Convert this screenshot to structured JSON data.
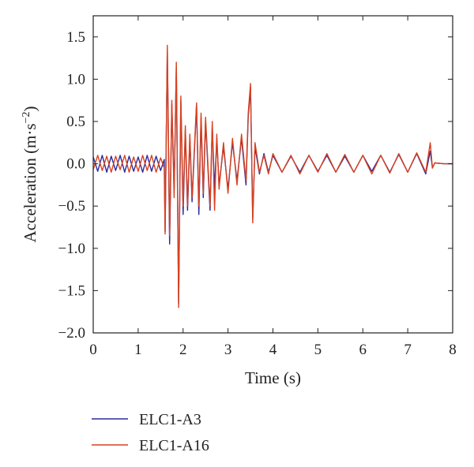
{
  "chart_data": {
    "type": "line",
    "title": "",
    "xlabel": "Time (s)",
    "ylabel": "Acceleration (m·s",
    "ylabel_sup": "−2",
    "ylabel_close": ")",
    "xlim": [
      0,
      8
    ],
    "ylim": [
      -2.0,
      1.75
    ],
    "xticks": [
      0,
      1,
      2,
      3,
      4,
      5,
      6,
      7,
      8
    ],
    "xtick_labels": [
      "0",
      "1",
      "2",
      "3",
      "4",
      "5",
      "6",
      "7",
      "8"
    ],
    "yticks": [
      1.5,
      1.0,
      0.5,
      0.0,
      -0.5,
      -1.0,
      -1.5,
      -2.0
    ],
    "ytick_labels": [
      "1.5",
      "1.0",
      "0.5",
      "0.0",
      "−0.5",
      "−1.0",
      "−1.5",
      "−2.0"
    ],
    "grid": false,
    "legend_position": "bottom-left below plot",
    "series": [
      {
        "name": "ELC1-A3",
        "color": "#2b2b9e",
        "x": [
          0.0,
          0.1,
          0.2,
          0.3,
          0.4,
          0.5,
          0.6,
          0.7,
          0.8,
          0.9,
          1.0,
          1.1,
          1.2,
          1.3,
          1.4,
          1.5,
          1.58,
          1.6,
          1.65,
          1.7,
          1.75,
          1.8,
          1.85,
          1.9,
          1.95,
          2.0,
          2.05,
          2.1,
          2.15,
          2.2,
          2.3,
          2.35,
          2.4,
          2.45,
          2.5,
          2.6,
          2.65,
          2.7,
          2.75,
          2.8,
          2.9,
          3.0,
          3.1,
          3.2,
          3.3,
          3.4,
          3.45,
          3.5,
          3.55,
          3.6,
          3.7,
          3.8,
          3.9,
          4.0,
          4.2,
          4.4,
          4.6,
          4.8,
          5.0,
          5.2,
          5.4,
          5.6,
          5.8,
          6.0,
          6.2,
          6.4,
          6.6,
          6.8,
          7.0,
          7.2,
          7.4,
          7.5,
          7.55,
          7.6,
          7.8,
          8.0
        ],
        "y": [
          0.08,
          -0.09,
          0.1,
          -0.1,
          0.09,
          -0.08,
          0.1,
          -0.1,
          0.09,
          -0.09,
          0.08,
          -0.1,
          0.1,
          -0.09,
          0.09,
          -0.08,
          0.05,
          -0.8,
          1.35,
          -0.95,
          0.7,
          -0.3,
          1.15,
          -1.65,
          0.75,
          -0.6,
          0.4,
          -0.55,
          0.3,
          -0.45,
          0.7,
          -0.6,
          0.55,
          -0.4,
          0.5,
          -0.55,
          0.45,
          -0.3,
          0.3,
          -0.25,
          0.2,
          -0.3,
          0.25,
          -0.2,
          0.3,
          -0.25,
          0.55,
          0.9,
          -0.65,
          0.2,
          -0.12,
          0.12,
          -0.1,
          0.1,
          -0.1,
          0.09,
          -0.1,
          0.1,
          -0.09,
          0.1,
          -0.1,
          0.09,
          -0.1,
          0.1,
          -0.09,
          0.1,
          -0.1,
          0.11,
          -0.1,
          0.12,
          -0.12,
          0.15,
          -0.05,
          0.01,
          0.0,
          0.0
        ]
      },
      {
        "name": "ELC1-A16",
        "color": "#d9411e",
        "x": [
          0.0,
          0.1,
          0.2,
          0.3,
          0.4,
          0.5,
          0.6,
          0.7,
          0.8,
          0.9,
          1.0,
          1.1,
          1.2,
          1.3,
          1.4,
          1.5,
          1.58,
          1.6,
          1.65,
          1.7,
          1.75,
          1.8,
          1.85,
          1.9,
          1.95,
          2.0,
          2.05,
          2.1,
          2.15,
          2.2,
          2.3,
          2.35,
          2.4,
          2.45,
          2.5,
          2.6,
          2.65,
          2.7,
          2.75,
          2.8,
          2.9,
          3.0,
          3.1,
          3.2,
          3.3,
          3.4,
          3.45,
          3.5,
          3.55,
          3.6,
          3.7,
          3.8,
          3.9,
          4.0,
          4.2,
          4.4,
          4.6,
          4.8,
          5.0,
          5.2,
          5.4,
          5.6,
          5.8,
          6.0,
          6.2,
          6.4,
          6.6,
          6.8,
          7.0,
          7.2,
          7.4,
          7.5,
          7.55,
          7.6,
          7.8,
          8.0
        ],
        "y": [
          -0.07,
          0.1,
          -0.08,
          0.09,
          -0.1,
          0.09,
          -0.07,
          0.1,
          -0.1,
          0.08,
          -0.09,
          0.1,
          -0.08,
          0.1,
          -0.1,
          0.07,
          -0.05,
          -0.83,
          1.4,
          -0.85,
          0.75,
          -0.4,
          1.2,
          -1.7,
          0.8,
          -0.5,
          0.45,
          -0.5,
          0.35,
          -0.4,
          0.72,
          -0.5,
          0.6,
          -0.35,
          0.55,
          -0.5,
          0.5,
          -0.55,
          0.35,
          -0.3,
          0.25,
          -0.35,
          0.3,
          -0.25,
          0.35,
          -0.2,
          0.6,
          0.95,
          -0.7,
          0.25,
          -0.1,
          0.1,
          -0.12,
          0.12,
          -0.1,
          0.1,
          -0.12,
          0.1,
          -0.1,
          0.12,
          -0.1,
          0.11,
          -0.1,
          0.1,
          -0.12,
          0.1,
          -0.11,
          0.12,
          -0.1,
          0.13,
          -0.1,
          0.25,
          -0.05,
          0.01,
          0.0,
          0.0
        ]
      }
    ]
  }
}
